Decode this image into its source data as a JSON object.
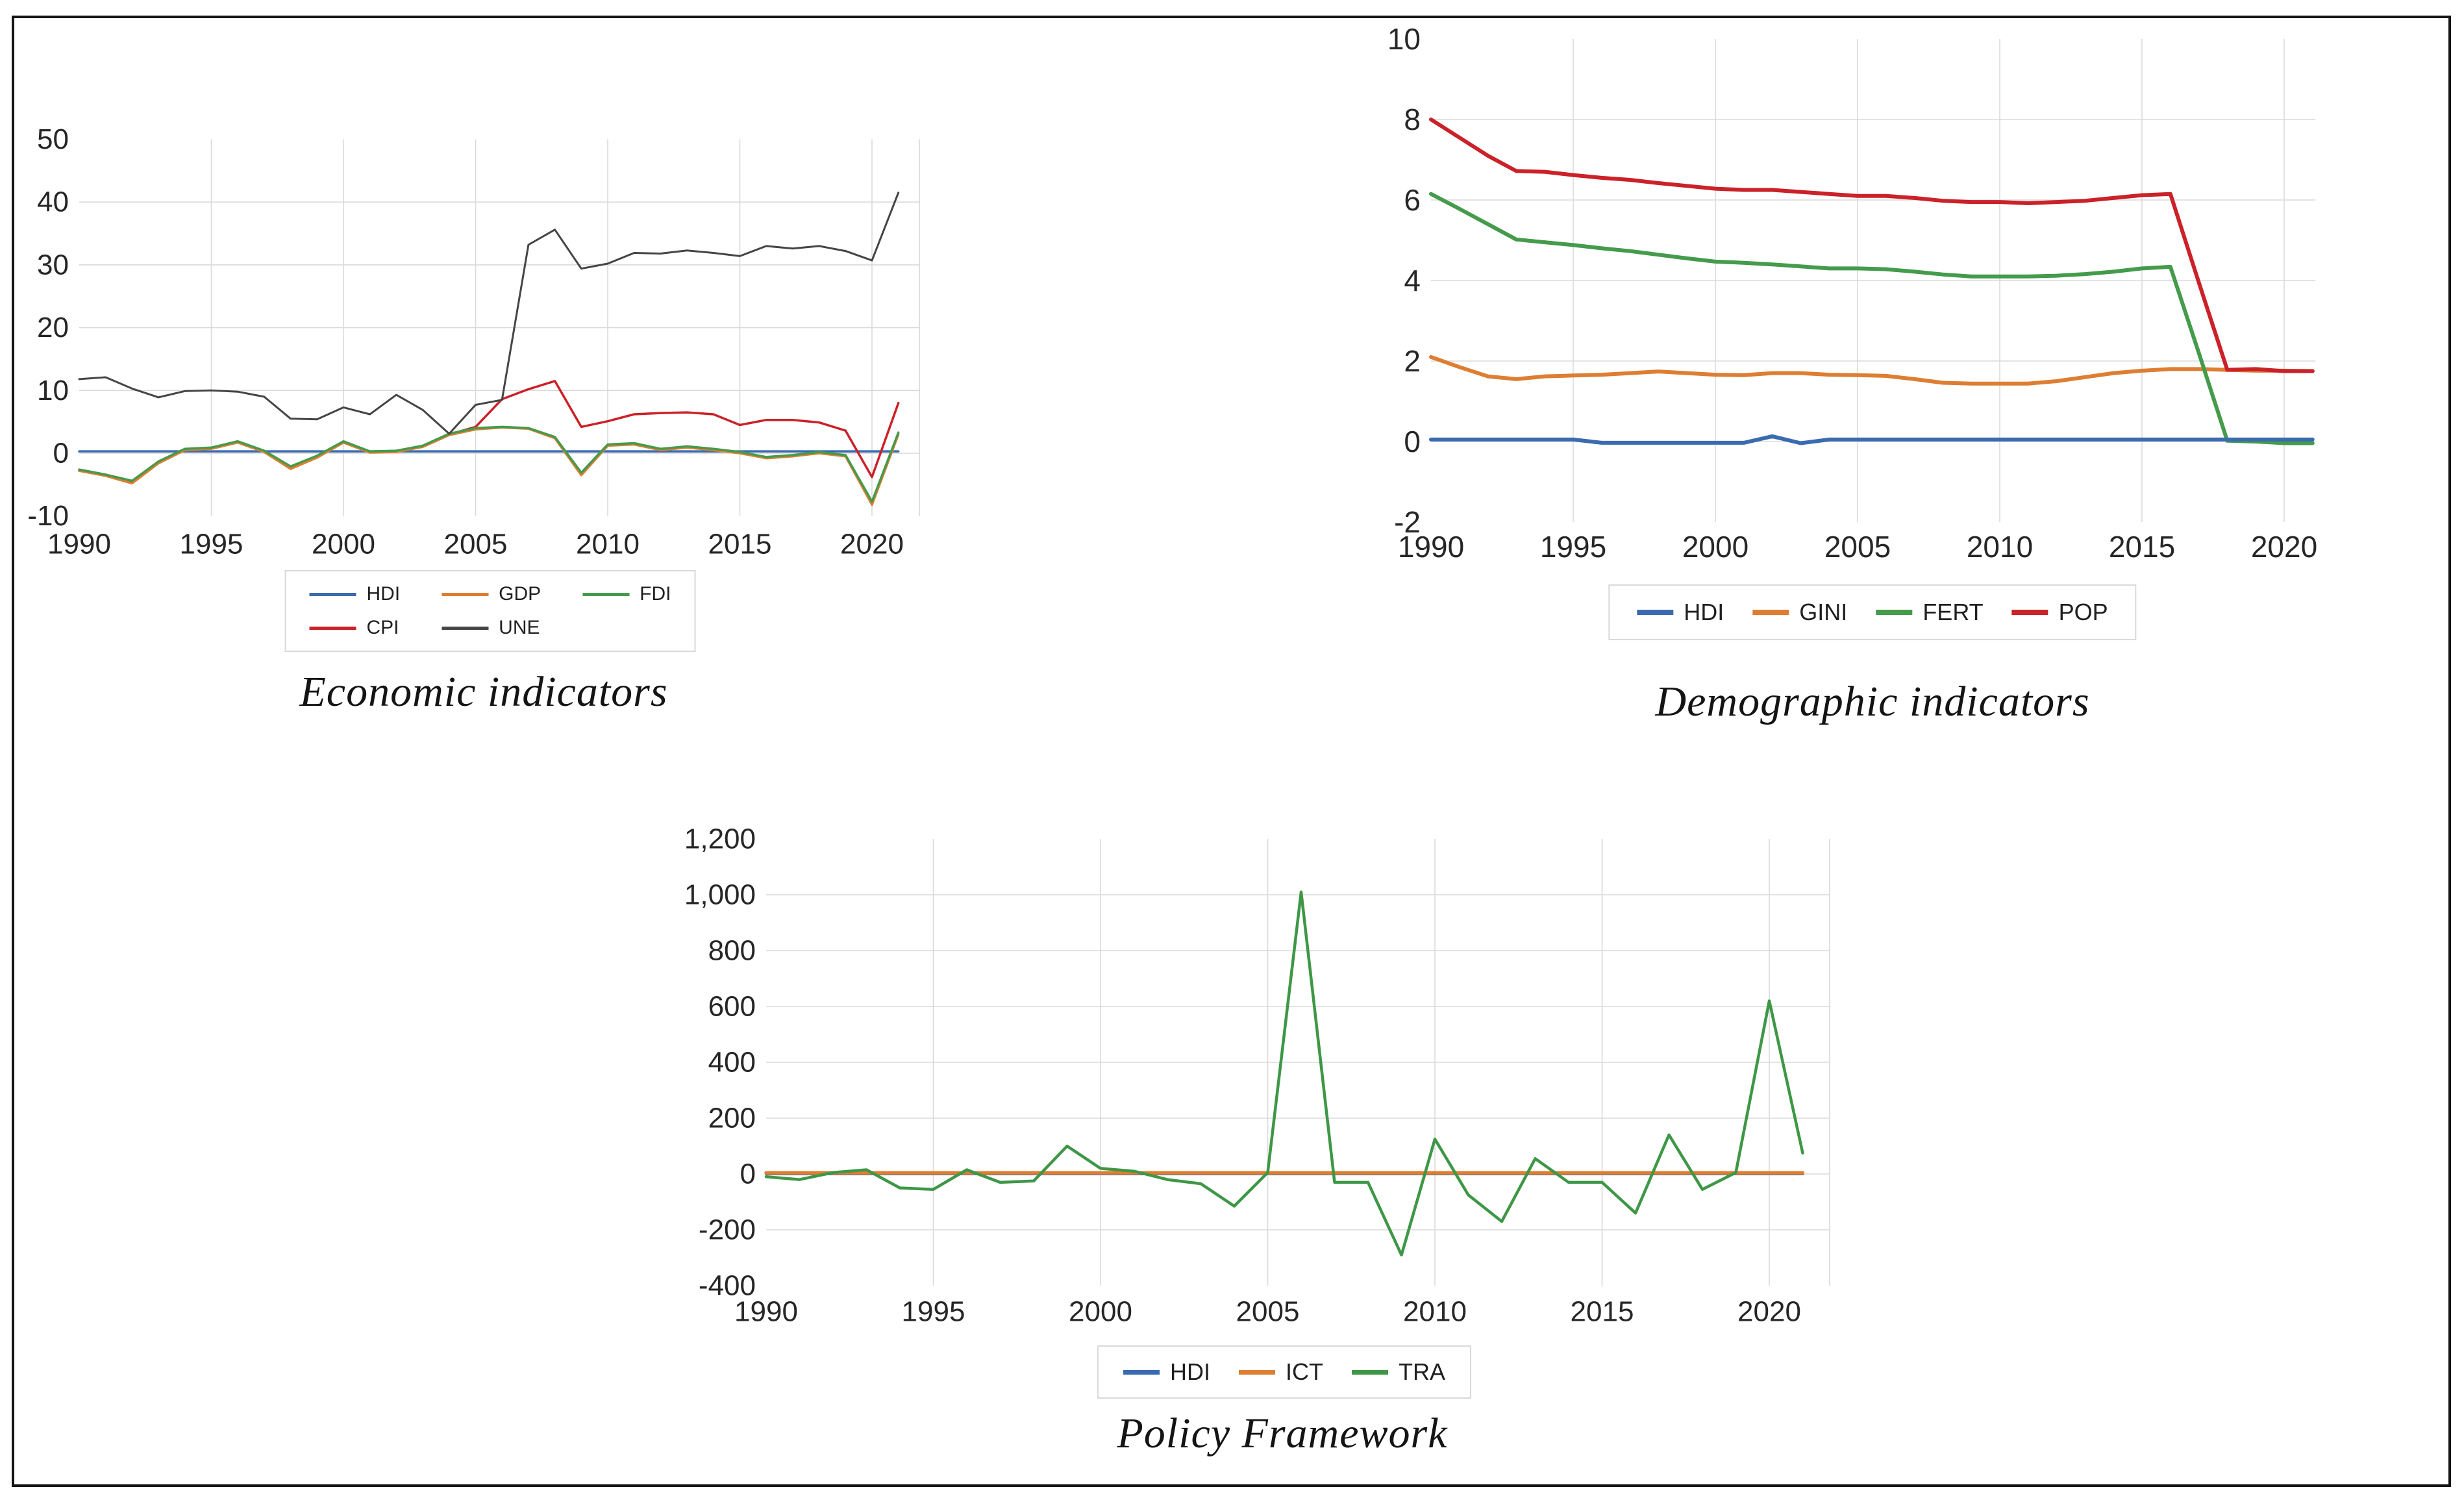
{
  "figure": {
    "background": "#ffffff",
    "border_color": "#151515"
  },
  "chart_data": [
    {
      "type": "line",
      "title": "Economic indicators",
      "xlabel": "",
      "ylabel": "",
      "ylim": [
        -10,
        50
      ],
      "xlim": [
        1990,
        2021.8
      ],
      "grid": true,
      "legend_position": "bottom",
      "ytick_values": [
        -10,
        0,
        10,
        20,
        30,
        40,
        50
      ],
      "ytick_labels": [
        "-10",
        "0",
        "10",
        "20",
        "30",
        "40",
        "50"
      ],
      "xtick_values": [
        1990,
        1995,
        2000,
        2005,
        2010,
        2015,
        2020
      ],
      "xtick_labels": [
        "1990",
        "1995",
        "2000",
        "2005",
        "2010",
        "2015",
        "2020"
      ],
      "x": [
        1990,
        1991,
        1992,
        1993,
        1994,
        1995,
        1996,
        1997,
        1998,
        1999,
        2000,
        2001,
        2002,
        2003,
        2004,
        2005,
        2006,
        2007,
        2008,
        2009,
        2010,
        2011,
        2012,
        2013,
        2014,
        2015,
        2016,
        2017,
        2018,
        2019,
        2020,
        2021
      ],
      "legend_rows": [
        [
          "HDI",
          "GDP",
          "FDI"
        ],
        [
          "CPI",
          "UNE"
        ]
      ],
      "series": [
        {
          "name": "HDI",
          "color": "#3A6BB0",
          "values": [
            0.3,
            0.3,
            0.3,
            0.3,
            0.3,
            0.3,
            0.3,
            0.3,
            0.3,
            0.3,
            0.3,
            0.3,
            0.3,
            0.3,
            0.3,
            0.3,
            0.3,
            0.3,
            0.3,
            0.3,
            0.3,
            0.3,
            0.3,
            0.3,
            0.3,
            0.3,
            0.3,
            0.3,
            0.3,
            0.3,
            0.3,
            0.3
          ]
        },
        {
          "name": "CPI",
          "color": "#CB2128",
          "values": [
            -2.7,
            -3.5,
            -4.6,
            -1.5,
            0.6,
            0.8,
            1.8,
            0.3,
            -2.3,
            -0.6,
            1.8,
            0.2,
            0.3,
            1.1,
            3.0,
            4.2,
            8.6,
            10.2,
            11.5,
            4.2,
            5.1,
            6.2,
            6.4,
            6.5,
            6.2,
            4.5,
            5.3,
            5.3,
            4.9,
            3.6,
            -3.8,
            8.0
          ]
        },
        {
          "name": "GDP",
          "color": "#DE7E32",
          "values": [
            -2.8,
            -3.6,
            -4.8,
            -1.6,
            0.5,
            0.7,
            1.7,
            0.2,
            -2.5,
            -0.7,
            1.7,
            0.1,
            0.2,
            1.0,
            2.9,
            3.8,
            4.1,
            3.9,
            2.4,
            -3.5,
            1.2,
            1.4,
            0.5,
            0.9,
            0.5,
            0.0,
            -0.8,
            -0.5,
            0.0,
            -0.5,
            -8.2,
            3.0
          ]
        },
        {
          "name": "FDI",
          "color": "#449B4B",
          "values": [
            -2.6,
            -3.4,
            -4.4,
            -1.3,
            0.7,
            0.9,
            1.9,
            0.4,
            -2.1,
            -0.4,
            1.9,
            0.3,
            0.4,
            1.2,
            3.1,
            4.0,
            4.2,
            4.0,
            2.6,
            -3.1,
            1.4,
            1.6,
            0.7,
            1.1,
            0.7,
            0.2,
            -0.6,
            -0.3,
            0.2,
            -0.3,
            -7.7,
            3.3
          ]
        },
        {
          "name": "UNE",
          "color": "#454545",
          "values": [
            11.8,
            12.1,
            10.3,
            8.9,
            9.9,
            10.0,
            9.8,
            9.0,
            5.5,
            5.4,
            7.3,
            6.2,
            9.3,
            6.9,
            3.1,
            7.7,
            8.5,
            33.2,
            35.6,
            29.4,
            30.2,
            31.9,
            31.8,
            32.3,
            31.9,
            31.4,
            33.0,
            32.6,
            33.0,
            32.2,
            30.7,
            41.5
          ]
        }
      ]
    },
    {
      "type": "line",
      "title": "Demographic indicators",
      "xlabel": "",
      "ylabel": "",
      "ylim": [
        -2,
        10
      ],
      "xlim": [
        1990,
        2021.1
      ],
      "grid": true,
      "legend_position": "bottom",
      "ytick_values": [
        -2,
        0,
        2,
        4,
        6,
        8,
        10
      ],
      "ytick_labels": [
        "-2",
        "0",
        "2",
        "4",
        "6",
        "8",
        "10"
      ],
      "xtick_values": [
        1990,
        1995,
        2000,
        2005,
        2010,
        2015,
        2020
      ],
      "xtick_labels": [
        "1990",
        "1995",
        "2000",
        "2005",
        "2010",
        "2015",
        "2020"
      ],
      "x": [
        1990,
        1991,
        1992,
        1993,
        1994,
        1995,
        1996,
        1997,
        1998,
        1999,
        2000,
        2001,
        2002,
        2003,
        2004,
        2005,
        2006,
        2007,
        2008,
        2009,
        2010,
        2011,
        2012,
        2013,
        2014,
        2015,
        2016,
        2017,
        2018,
        2019,
        2020,
        2021
      ],
      "legend_rows": [
        [
          "HDI",
          "GINI",
          "FERT",
          "POP"
        ]
      ],
      "series": [
        {
          "name": "GINI",
          "color": "#DE7E32",
          "values": [
            2.1,
            1.85,
            1.62,
            1.55,
            1.62,
            1.64,
            1.66,
            1.7,
            1.74,
            1.7,
            1.66,
            1.65,
            1.7,
            1.7,
            1.66,
            1.65,
            1.63,
            1.55,
            1.46,
            1.44,
            1.44,
            1.44,
            1.5,
            1.6,
            1.7,
            1.76,
            1.8,
            1.8,
            1.78,
            1.76,
            1.76,
            1.75
          ]
        },
        {
          "name": "FERT",
          "color": "#449B4B",
          "values": [
            6.15,
            5.78,
            5.4,
            5.02,
            4.95,
            4.88,
            4.8,
            4.73,
            4.64,
            4.55,
            4.47,
            4.44,
            4.4,
            4.35,
            4.3,
            4.3,
            4.28,
            4.22,
            4.15,
            4.1,
            4.1,
            4.1,
            4.12,
            4.16,
            4.22,
            4.3,
            4.34,
            2.2,
            0.02,
            0.0,
            -0.04,
            -0.04
          ]
        },
        {
          "name": "POP",
          "color": "#CB2128",
          "values": [
            8.0,
            7.55,
            7.1,
            6.72,
            6.7,
            6.62,
            6.55,
            6.5,
            6.42,
            6.35,
            6.28,
            6.25,
            6.25,
            6.2,
            6.15,
            6.1,
            6.1,
            6.05,
            5.98,
            5.95,
            5.95,
            5.92,
            5.95,
            5.98,
            6.05,
            6.12,
            6.15,
            3.95,
            1.78,
            1.8,
            1.75,
            1.75
          ]
        },
        {
          "name": "HDI",
          "color": "#3A6BB0",
          "values": [
            0.05,
            0.05,
            0.05,
            0.05,
            0.05,
            0.05,
            -0.03,
            -0.03,
            -0.03,
            -0.03,
            -0.03,
            -0.03,
            0.13,
            -0.04,
            0.05,
            0.05,
            0.05,
            0.05,
            0.05,
            0.05,
            0.05,
            0.05,
            0.05,
            0.05,
            0.05,
            0.05,
            0.05,
            0.05,
            0.05,
            0.05,
            0.05,
            0.05
          ]
        }
      ]
    },
    {
      "type": "line",
      "title": "Policy Framework",
      "xlabel": "",
      "ylabel": "",
      "ylim": [
        -400,
        1200
      ],
      "xlim": [
        1990,
        2021.8
      ],
      "grid": true,
      "legend_position": "bottom",
      "ytick_values": [
        -400,
        -200,
        0,
        200,
        400,
        600,
        800,
        1000,
        1200
      ],
      "ytick_labels": [
        "-400",
        "-200",
        "0",
        "200",
        "400",
        "600",
        "800",
        "1,000",
        "1,200"
      ],
      "xtick_values": [
        1990,
        1995,
        2000,
        2005,
        2010,
        2015,
        2020
      ],
      "xtick_labels": [
        "1990",
        "1995",
        "2000",
        "2005",
        "2010",
        "2015",
        "2020"
      ],
      "x": [
        1990,
        1991,
        1992,
        1993,
        1994,
        1995,
        1996,
        1997,
        1998,
        1999,
        2000,
        2001,
        2002,
        2003,
        2004,
        2005,
        2006,
        2007,
        2008,
        2009,
        2010,
        2011,
        2012,
        2013,
        2014,
        2015,
        2016,
        2017,
        2018,
        2019,
        2020,
        2021
      ],
      "legend_rows": [
        [
          "HDI",
          "ICT",
          "TRA"
        ]
      ],
      "series": [
        {
          "name": "HDI",
          "color": "#3A6BB0",
          "values": [
            0,
            0,
            0,
            0,
            0,
            0,
            0,
            0,
            0,
            0,
            0,
            0,
            0,
            0,
            0,
            0,
            0,
            0,
            0,
            0,
            0,
            0,
            0,
            0,
            0,
            0,
            0,
            0,
            0,
            0,
            0,
            0
          ]
        },
        {
          "name": "ICT",
          "color": "#DE7E32",
          "values": [
            4,
            4,
            4,
            4,
            4,
            4,
            4,
            4,
            4,
            4,
            4,
            4,
            4,
            4,
            4,
            4,
            4,
            4,
            4,
            4,
            4,
            4,
            4,
            4,
            4,
            4,
            4,
            4,
            4,
            4,
            4,
            4
          ]
        },
        {
          "name": "TRA",
          "color": "#3E9746",
          "values": [
            -10,
            -20,
            5,
            15,
            -50,
            -55,
            15,
            -30,
            -25,
            100,
            20,
            10,
            -20,
            -35,
            -115,
            5,
            1010,
            -30,
            -30,
            -290,
            125,
            -75,
            -170,
            55,
            -30,
            -30,
            -140,
            140,
            -55,
            5,
            620,
            75
          ]
        }
      ]
    }
  ]
}
